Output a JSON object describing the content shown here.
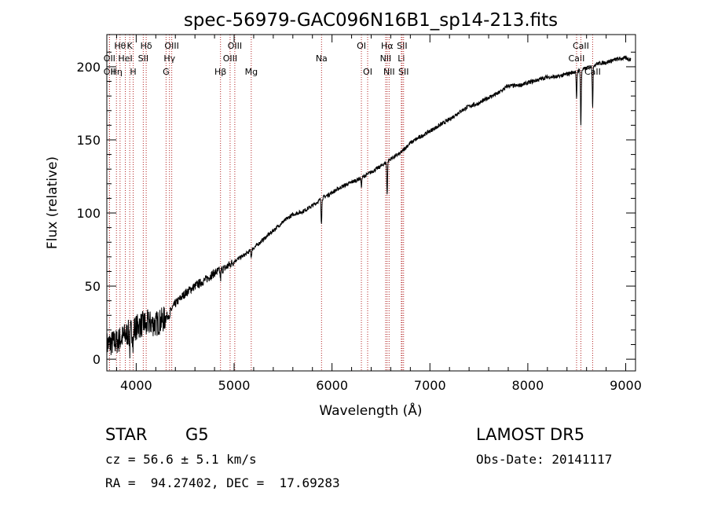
{
  "chart_data": {
    "type": "line",
    "title": "spec-56979-GAC096N16B1_sp14-213.fits",
    "xlabel": "Wavelength (Å)",
    "ylabel": "Flux (relative)",
    "xlim": [
      3700,
      9100
    ],
    "ylim": [
      -8,
      222
    ],
    "xticks": [
      4000,
      5000,
      6000,
      7000,
      8000,
      9000
    ],
    "yticks": [
      0,
      50,
      100,
      150,
      200
    ],
    "grid": false,
    "line_color": "#000000",
    "marker_color": "#b22222",
    "spectrum_anchors": [
      [
        3700,
        10
      ],
      [
        3800,
        12
      ],
      [
        3900,
        17
      ],
      [
        4000,
        22
      ],
      [
        4100,
        25
      ],
      [
        4200,
        24
      ],
      [
        4300,
        28
      ],
      [
        4400,
        38
      ],
      [
        4500,
        45
      ],
      [
        4600,
        50
      ],
      [
        4700,
        54
      ],
      [
        4800,
        59
      ],
      [
        4900,
        62
      ],
      [
        5000,
        67
      ],
      [
        5100,
        71
      ],
      [
        5200,
        76
      ],
      [
        5300,
        82
      ],
      [
        5400,
        88
      ],
      [
        5500,
        94
      ],
      [
        5600,
        99
      ],
      [
        5700,
        101
      ],
      [
        5800,
        105
      ],
      [
        5900,
        110
      ],
      [
        6000,
        114
      ],
      [
        6100,
        118
      ],
      [
        6200,
        121
      ],
      [
        6300,
        124
      ],
      [
        6400,
        128
      ],
      [
        6500,
        132
      ],
      [
        6600,
        137
      ],
      [
        6700,
        141
      ],
      [
        6800,
        148
      ],
      [
        6900,
        152
      ],
      [
        7000,
        156
      ],
      [
        7100,
        160
      ],
      [
        7200,
        164
      ],
      [
        7300,
        169
      ],
      [
        7400,
        173
      ],
      [
        7500,
        175
      ],
      [
        7600,
        179
      ],
      [
        7700,
        182
      ],
      [
        7800,
        187
      ],
      [
        7900,
        187
      ],
      [
        8000,
        189
      ],
      [
        8100,
        191
      ],
      [
        8200,
        193
      ],
      [
        8300,
        193
      ],
      [
        8400,
        195
      ],
      [
        8500,
        197
      ],
      [
        8600,
        199
      ],
      [
        8700,
        202
      ],
      [
        8800,
        203
      ],
      [
        8900,
        205
      ],
      [
        9000,
        206
      ],
      [
        9050,
        205
      ]
    ],
    "absorption_dips": [
      [
        3934,
        12
      ],
      [
        3969,
        12
      ],
      [
        4102,
        5
      ],
      [
        4340,
        6
      ],
      [
        4861,
        6
      ],
      [
        5175,
        5
      ],
      [
        5892,
        16
      ],
      [
        6300,
        6
      ],
      [
        6563,
        22
      ],
      [
        8498,
        20
      ],
      [
        8542,
        38
      ],
      [
        8662,
        28
      ]
    ],
    "line_markers": [
      {
        "wavelength": 3727,
        "label": "OII",
        "row": 2
      },
      {
        "wavelength": 3727,
        "label": "OII",
        "row": 1
      },
      {
        "wavelength": 3798,
        "label": "Hη",
        "row": 2
      },
      {
        "wavelength": 3835,
        "label": "Hθ",
        "row": 0
      },
      {
        "wavelength": 3889,
        "label": "HeI",
        "row": 1
      },
      {
        "wavelength": 3934,
        "label": "K",
        "row": 0
      },
      {
        "wavelength": 3969,
        "label": "H",
        "row": 2
      },
      {
        "wavelength": 4072,
        "label": "SII",
        "row": 1
      },
      {
        "wavelength": 4102,
        "label": "Hδ",
        "row": 0
      },
      {
        "wavelength": 4305,
        "label": "G",
        "row": 2
      },
      {
        "wavelength": 4340,
        "label": "Hγ",
        "row": 1
      },
      {
        "wavelength": 4363,
        "label": "OIII",
        "row": 0
      },
      {
        "wavelength": 4861,
        "label": "Hβ",
        "row": 2
      },
      {
        "wavelength": 4959,
        "label": "OIII",
        "row": 1
      },
      {
        "wavelength": 5007,
        "label": "OIII",
        "row": 0
      },
      {
        "wavelength": 5175,
        "label": "Mg",
        "row": 2
      },
      {
        "wavelength": 5893,
        "label": "Na",
        "row": 1
      },
      {
        "wavelength": 6300,
        "label": "OI",
        "row": 0
      },
      {
        "wavelength": 6364,
        "label": "OI",
        "row": 2
      },
      {
        "wavelength": 6548,
        "label": "NII",
        "row": 1
      },
      {
        "wavelength": 6563,
        "label": "Hα",
        "row": 0
      },
      {
        "wavelength": 6583,
        "label": "NII",
        "row": 2
      },
      {
        "wavelength": 6708,
        "label": "Li",
        "row": 1
      },
      {
        "wavelength": 6716,
        "label": "SII",
        "row": 0
      },
      {
        "wavelength": 6731,
        "label": "SII",
        "row": 2
      },
      {
        "wavelength": 8498,
        "label": "CaII",
        "row": 1
      },
      {
        "wavelength": 8542,
        "label": "CaII",
        "row": 0
      },
      {
        "wavelength": 8662,
        "label": "CaII",
        "row": 2
      }
    ]
  },
  "info": {
    "object_class": "STAR",
    "subclass": "G5",
    "survey": "LAMOST DR5",
    "velocity": "cz = 56.6 ± 5.1 km/s",
    "obs_date": "Obs-Date: 20141117",
    "coords": "RA =  94.27402, DEC =  17.69283"
  }
}
